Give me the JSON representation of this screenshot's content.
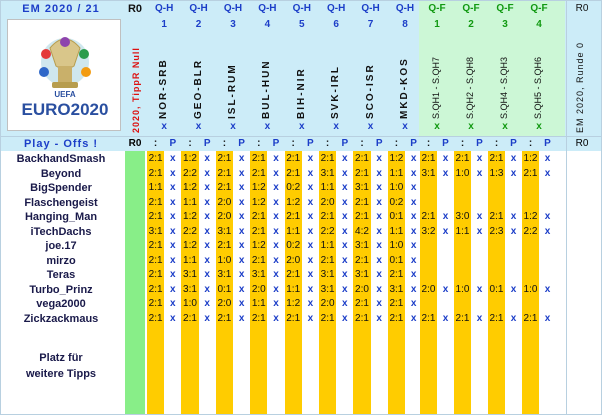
{
  "header": {
    "title": "EM 2020 / 21",
    "round_label": "R0",
    "right_round_label": "R0",
    "side_text": "2020, TippR Null",
    "right_side_text": "EM 2020, Runde 0",
    "logo_text": "EURO2020",
    "logo_small": "UEFA"
  },
  "colors": {
    "light_blue": "#ccecf8",
    "mint": "#ccf7d6",
    "orange": "#ffcc00",
    "green": "#88ee88",
    "blue_text": "#1c3ec8",
    "green_text": "#119911"
  },
  "qh_columns": [
    {
      "round": "Q-H",
      "num": "1",
      "match": "NOR-SRB",
      "mark": "x"
    },
    {
      "round": "Q-H",
      "num": "2",
      "match": "GEO-BLR",
      "mark": "x"
    },
    {
      "round": "Q-H",
      "num": "3",
      "match": "ISL-RUM",
      "mark": "x"
    },
    {
      "round": "Q-H",
      "num": "4",
      "match": "BUL-HUN",
      "mark": "x"
    },
    {
      "round": "Q-H",
      "num": "5",
      "match": "BIH-NIR",
      "mark": "x"
    },
    {
      "round": "Q-H",
      "num": "6",
      "match": "SVK-IRL",
      "mark": "x"
    },
    {
      "round": "Q-H",
      "num": "7",
      "match": "SCO-ISR",
      "mark": "x"
    },
    {
      "round": "Q-H",
      "num": "8",
      "match": "MKD-KOS",
      "mark": "x"
    }
  ],
  "qf_columns": [
    {
      "round": "Q-F",
      "num": "1",
      "match": "S.QH1 - S.QH7",
      "mark": "x"
    },
    {
      "round": "Q-F",
      "num": "2",
      "match": "S.QH2 - S.QH8",
      "mark": "x"
    },
    {
      "round": "Q-F",
      "num": "3",
      "match": "S.QH4 - S.QH3",
      "mark": "x"
    },
    {
      "round": "Q-F",
      "num": "4",
      "match": "S.QH5 - S.QH6",
      "mark": "x"
    }
  ],
  "playoffs": {
    "label": "Play - Offs !",
    "round": "R0",
    "col_label": "P",
    "sep": ":"
  },
  "players": [
    {
      "name": "BackhandSmash",
      "qh": [
        "2:1",
        "1:2",
        "2:1",
        "2:1",
        "2:1",
        "2:1",
        "2:1",
        "1:2"
      ],
      "qf": [
        "2:1",
        "2:1",
        "2:1",
        "1:2"
      ]
    },
    {
      "name": "Beyond",
      "qh": [
        "2:1",
        "2:2",
        "2:1",
        "2:1",
        "2:1",
        "3:1",
        "2:1",
        "1:1"
      ],
      "qf": [
        "3:1",
        "1:0",
        "1:3",
        "2:1"
      ]
    },
    {
      "name": "BigSpender",
      "qh": [
        "1:1",
        "1:2",
        "2:1",
        "1:2",
        "0:2",
        "1:1",
        "3:1",
        "1:0"
      ],
      "qf": [
        "",
        "",
        "",
        ""
      ]
    },
    {
      "name": "Flaschengeist",
      "qh": [
        "2:1",
        "1:1",
        "2:0",
        "1:2",
        "1:2",
        "2:0",
        "2:1",
        "0:2"
      ],
      "qf": [
        "",
        "",
        "",
        ""
      ]
    },
    {
      "name": "Hanging_Man",
      "qh": [
        "2:1",
        "1:2",
        "2:0",
        "2:1",
        "2:1",
        "2:1",
        "2:1",
        "0:1"
      ],
      "qf": [
        "2:1",
        "3:0",
        "2:1",
        "1:2"
      ]
    },
    {
      "name": "iTechDachs",
      "qh": [
        "3:1",
        "2:2",
        "3:1",
        "2:1",
        "1:1",
        "2:2",
        "4:2",
        "1:1"
      ],
      "qf": [
        "3:2",
        "1:1",
        "2:3",
        "2:2"
      ]
    },
    {
      "name": "joe.17",
      "qh": [
        "2:1",
        "1:2",
        "2:1",
        "1:2",
        "0:2",
        "1:1",
        "3:1",
        "1:0"
      ],
      "qf": [
        "",
        "",
        "",
        ""
      ]
    },
    {
      "name": "mirzo",
      "qh": [
        "2:1",
        "1:1",
        "1:0",
        "2:1",
        "2:0",
        "2:1",
        "2:1",
        "0:1"
      ],
      "qf": [
        "",
        "",
        "",
        ""
      ]
    },
    {
      "name": "Teras",
      "qh": [
        "2:1",
        "3:1",
        "3:1",
        "3:1",
        "2:1",
        "3:1",
        "3:1",
        "2:1"
      ],
      "qf": [
        "",
        "",
        "",
        ""
      ]
    },
    {
      "name": "Turbo_Prinz",
      "qh": [
        "2:1",
        "3:1",
        "0:1",
        "2:0",
        "1:1",
        "3:1",
        "2:0",
        "3:1"
      ],
      "qf": [
        "2:0",
        "1:0",
        "0:1",
        "1:0"
      ]
    },
    {
      "name": "vega2000",
      "qh": [
        "2:1",
        "1:0",
        "2:0",
        "1:1",
        "1:2",
        "2:0",
        "2:1",
        "2:1"
      ],
      "qf": [
        "",
        "",
        "",
        ""
      ]
    },
    {
      "name": "Zickzackmaus",
      "qh": [
        "2:1",
        "2:1",
        "2:1",
        "2:1",
        "2:1",
        "2:1",
        "2:1",
        "2:1"
      ],
      "qf": [
        "2:1",
        "2:1",
        "2:1",
        "2:1"
      ]
    }
  ],
  "footer_note": [
    "Platz für",
    "weitere Tipps"
  ],
  "right_col_empty": ""
}
